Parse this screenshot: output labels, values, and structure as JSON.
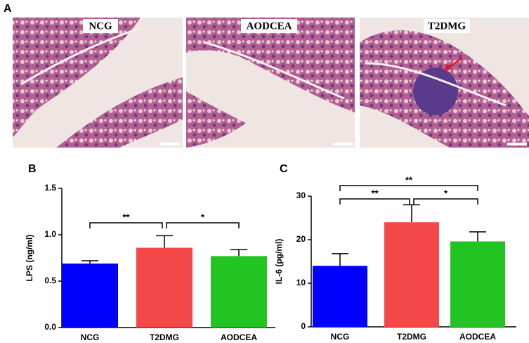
{
  "panel_a": {
    "label": "A",
    "images": [
      {
        "label": "NCG"
      },
      {
        "label": "AODCEA"
      },
      {
        "label": "T2DMG"
      }
    ]
  },
  "chart_data": [
    {
      "type": "bar",
      "panel": "B",
      "ylabel": "LPS (ng/ml)",
      "categories": [
        "NCG",
        "T2DMG",
        "AODCEA"
      ],
      "values": [
        0.69,
        0.86,
        0.77
      ],
      "errors": [
        0.03,
        0.13,
        0.07
      ],
      "colors": [
        "#0000ff",
        "#f44848",
        "#22c422"
      ],
      "ylim": [
        0,
        1.5
      ],
      "yticks": [
        {
          "value": 0,
          "label": "0.0"
        },
        {
          "value": 0.5,
          "label": "0.5"
        },
        {
          "value": 1,
          "label": "1.0"
        },
        {
          "value": 1.5,
          "label": "1.5"
        }
      ],
      "annotations": [
        "**",
        "*"
      ]
    },
    {
      "type": "bar",
      "panel": "C",
      "ylabel": "IL-6 (pg/ml)",
      "categories": [
        "NCG",
        "T2DMG",
        "AODCEA"
      ],
      "values": [
        14,
        24,
        19.6
      ],
      "errors": [
        2.8,
        4,
        2.2
      ],
      "colors": [
        "#0000ff",
        "#f44848",
        "#22c422"
      ],
      "ylim": [
        0,
        30
      ],
      "yticks": [
        0,
        10,
        20,
        30
      ],
      "annotations": [
        "**",
        "**",
        "*"
      ]
    }
  ]
}
